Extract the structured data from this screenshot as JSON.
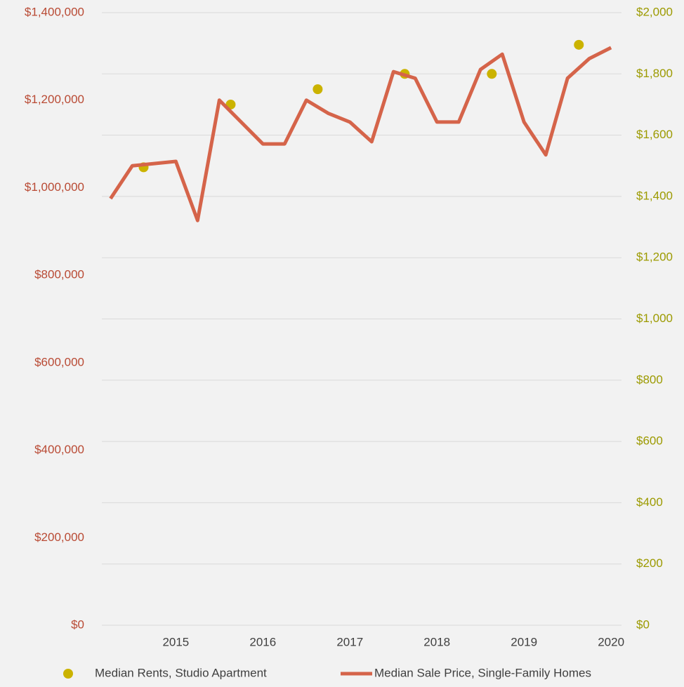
{
  "chart_data": {
    "type": "line",
    "xlim": [
      2014.15,
      2020.12
    ],
    "xticks": [
      2015,
      2016,
      2017,
      2018,
      2019,
      2020
    ],
    "ylim": [
      0,
      1400000
    ],
    "yticks": [
      {
        "value": 0,
        "label": "$0"
      },
      {
        "value": 200000,
        "label": "$200,000"
      },
      {
        "value": 400000,
        "label": "$400,000"
      },
      {
        "value": 600000,
        "label": "$600,000"
      },
      {
        "value": 800000,
        "label": "$800,000"
      },
      {
        "value": 1000000,
        "label": "$1,000,000"
      },
      {
        "value": 1200000,
        "label": "$1,200,000"
      },
      {
        "value": 1400000,
        "label": "$1,400,000"
      }
    ],
    "y2lim": [
      0,
      2000
    ],
    "y2ticks": [
      {
        "value": 0,
        "label": "$0"
      },
      {
        "value": 200,
        "label": "$200"
      },
      {
        "value": 400,
        "label": "$400"
      },
      {
        "value": 600,
        "label": "$600"
      },
      {
        "value": 800,
        "label": "$800"
      },
      {
        "value": 1000,
        "label": "$1,000"
      },
      {
        "value": 1200,
        "label": "$1,200"
      },
      {
        "value": 1400,
        "label": "$1,400"
      },
      {
        "value": 1600,
        "label": "$1,600"
      },
      {
        "value": 1800,
        "label": "$1,800"
      },
      {
        "value": 2000,
        "label": "$2,000"
      }
    ],
    "grid": true,
    "legend": "bottom",
    "series": [
      {
        "name": "Median Rents, Studio Apartment",
        "color": "#cbb300",
        "axis": "y2",
        "marker": "dot",
        "x": [
          2014.63,
          2015.63,
          2016.63,
          2017.63,
          2018.63,
          2019.63
        ],
        "values": [
          1495,
          1700,
          1750,
          1800,
          1800,
          1895
        ]
      },
      {
        "name": "Median Sale Price, Single-Family Homes",
        "color": "#d5644a",
        "marker": "line",
        "x": [
          2014.25,
          2014.5,
          2014.75,
          2015.0,
          2015.25,
          2015.5,
          2015.75,
          2016.0,
          2016.25,
          2016.5,
          2016.75,
          2017.0,
          2017.25,
          2017.5,
          2017.75,
          2018.0,
          2018.25,
          2018.5,
          2018.75,
          2019.0,
          2019.25,
          2019.5,
          2019.75,
          2020.0
        ],
        "values": [
          975000,
          1050000,
          1055000,
          1060000,
          925000,
          1200000,
          1150000,
          1100000,
          1100000,
          1200000,
          1170000,
          1150000,
          1105000,
          1265000,
          1250000,
          1150000,
          1150000,
          1270000,
          1305000,
          1150000,
          1075000,
          1250000,
          1295000,
          1320000
        ]
      }
    ]
  }
}
